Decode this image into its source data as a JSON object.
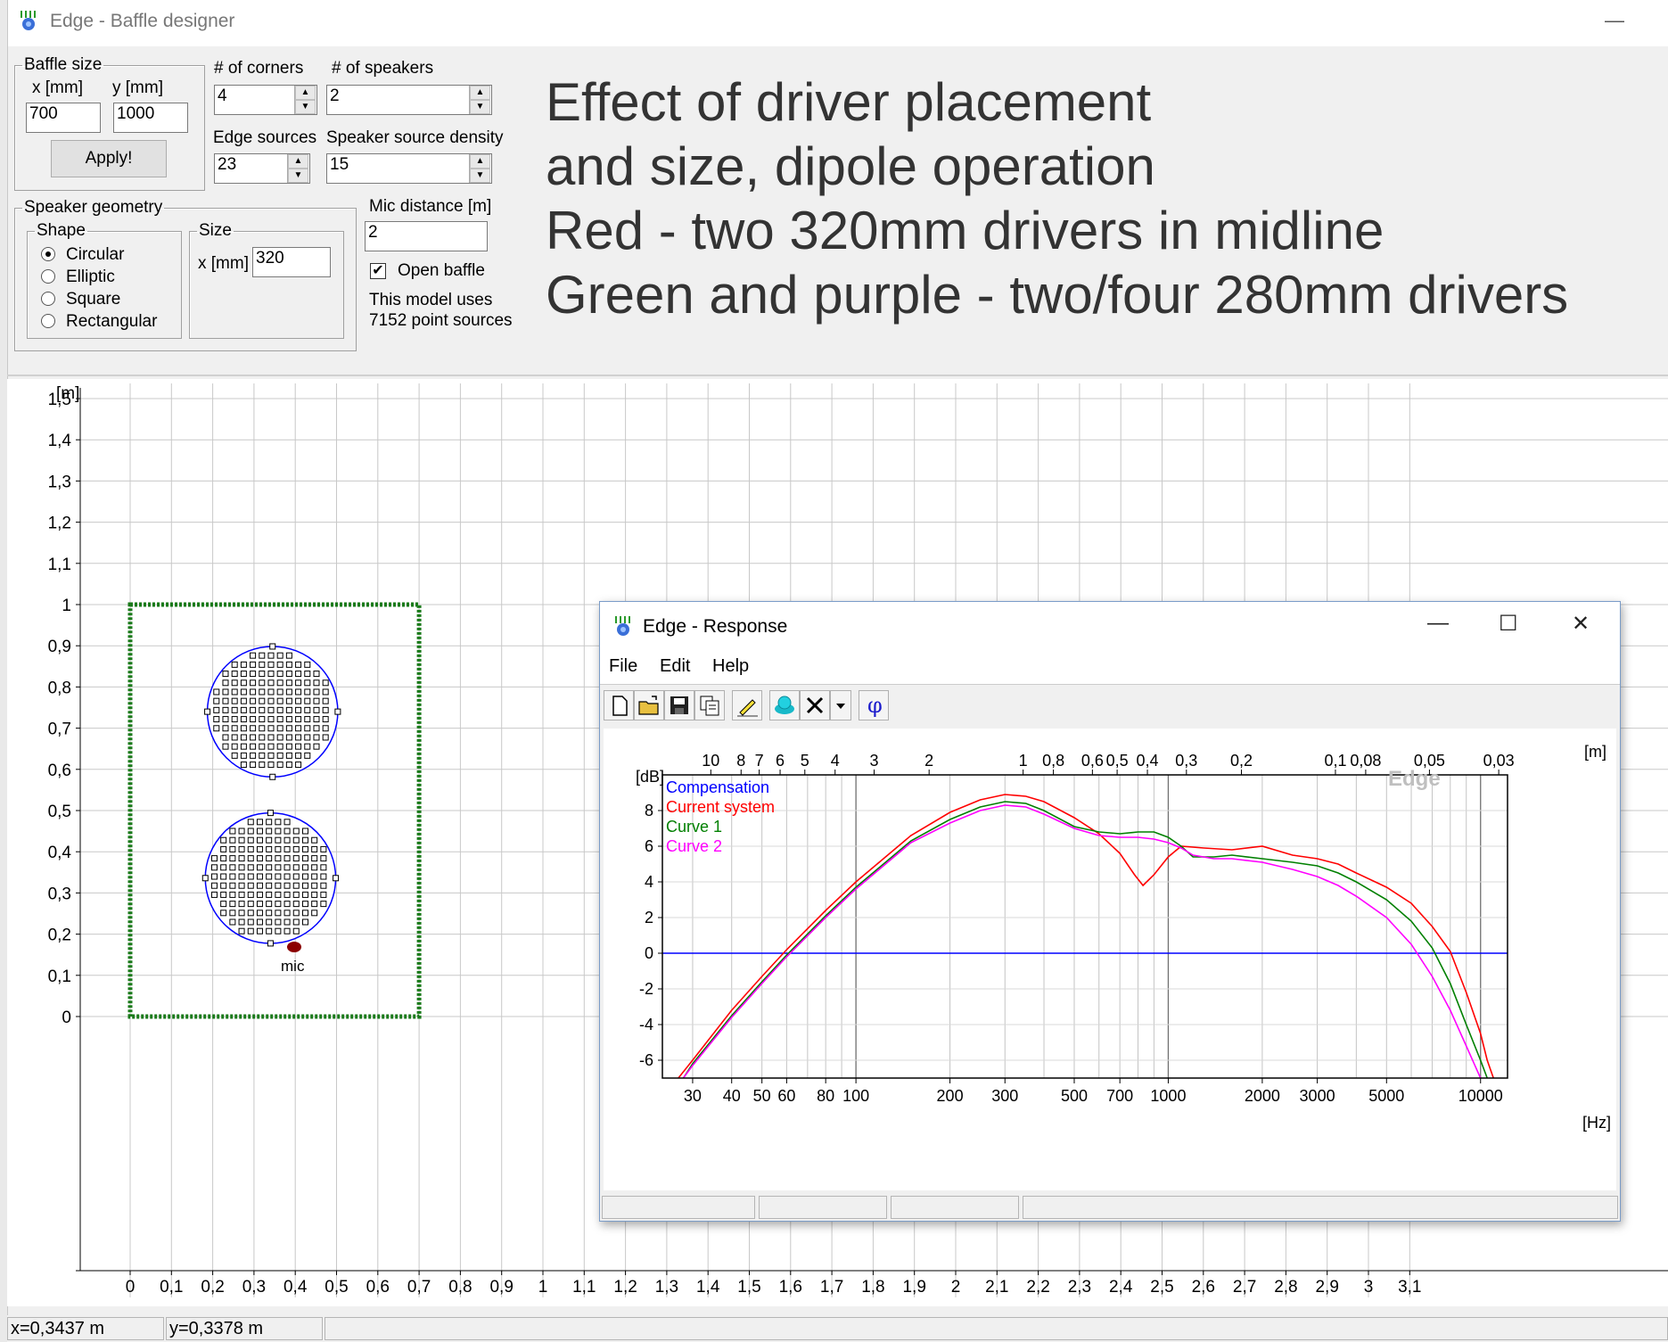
{
  "window": {
    "title": "Edge - Baffle designer",
    "minimize": "—"
  },
  "baffle_size": {
    "legend": "Baffle size",
    "x_label": "x [mm]",
    "y_label": "y [mm]",
    "x_value": "700",
    "y_value": "1000",
    "apply_label": "Apply!"
  },
  "corners": {
    "label": "# of corners",
    "value": "4"
  },
  "speakers": {
    "label": "# of speakers",
    "value": "2"
  },
  "edge_sources": {
    "label": "Edge sources",
    "value": "23"
  },
  "speaker_density": {
    "label": "Speaker source density",
    "value": "15"
  },
  "speaker_geometry": {
    "legend": "Speaker geometry",
    "shape_legend": "Shape",
    "shapes": [
      "Circular",
      "Elliptic",
      "Square",
      "Rectangular"
    ],
    "selected_shape": "Circular",
    "size_legend": "Size",
    "size_x_label": "x [mm]",
    "size_x_value": "320"
  },
  "mic": {
    "label": "Mic distance [m]",
    "value": "2",
    "open_baffle_label": "Open baffle",
    "open_baffle_checked": true,
    "model_text_1": "This model uses",
    "model_text_2": "7152 point sources"
  },
  "annotation": [
    "Effect of driver placement",
    "and size, dipole operation",
    "Red - two 320mm drivers in midline",
    "Green and purple - two/four 280mm drivers"
  ],
  "plot": {
    "y_unit": "[m]",
    "y_ticks": [
      "1,6",
      "1,5",
      "1,4",
      "1,3",
      "1,2",
      "1,1",
      "1",
      "0,9",
      "0,8",
      "0,7",
      "0,6",
      "0,5",
      "0,4",
      "0,3",
      "0,2",
      "0,1",
      "0"
    ],
    "x_ticks": [
      "0",
      "0,1",
      "0,2",
      "0,3",
      "0,4",
      "0,5",
      "0,6",
      "0,7",
      "0,8",
      "0,9",
      "1",
      "1,1",
      "1,2",
      "1,3",
      "1,4",
      "1,5",
      "1,6",
      "1,7",
      "1,8",
      "1,9",
      "2",
      "2,1",
      "2,2",
      "2,3",
      "2,4",
      "2,5",
      "2,6",
      "2,7",
      "2,8",
      "2,9",
      "3",
      "3,1"
    ],
    "mic_label": "mic",
    "baffle_color": "#1a7a1a",
    "speaker_color": "#0000ff",
    "mic_color": "#8b0000"
  },
  "status": {
    "x": "x=0,3437 m",
    "y": "y=0,3378 m"
  },
  "response": {
    "title": "Edge - Response",
    "controls": {
      "minimize": "—",
      "maximize": "☐",
      "close": "✕"
    },
    "menu": [
      "File",
      "Edit",
      "Help"
    ],
    "toolbar_icons": [
      "new-file-icon",
      "open-folder-icon",
      "save-icon",
      "copy-icon",
      "pencil-icon",
      "speaker-icon",
      "delete-icon",
      "dropdown-icon",
      "phase-icon"
    ],
    "phase_symbol": "φ",
    "chart_data": {
      "type": "line",
      "x_scale": "log",
      "xlabel": "[Hz]",
      "ylabel": "[dB]",
      "top_axis_label": "[m]",
      "watermark": "Edge",
      "xlim": [
        24,
        12200
      ],
      "ylim": [
        -7,
        10
      ],
      "x_tick_labels": [
        {
          "v": 30,
          "t": "30"
        },
        {
          "v": 40,
          "t": "40"
        },
        {
          "v": 50,
          "t": "50"
        },
        {
          "v": 60,
          "t": "60"
        },
        {
          "v": 80,
          "t": "80"
        },
        {
          "v": 100,
          "t": "100"
        },
        {
          "v": 200,
          "t": "200"
        },
        {
          "v": 300,
          "t": "300"
        },
        {
          "v": 500,
          "t": "500"
        },
        {
          "v": 700,
          "t": "700"
        },
        {
          "v": 1000,
          "t": "1000"
        },
        {
          "v": 2000,
          "t": "2000"
        },
        {
          "v": 3000,
          "t": "3000"
        },
        {
          "v": 5000,
          "t": "5000"
        },
        {
          "v": 10000,
          "t": "10000"
        }
      ],
      "top_tick_labels": [
        {
          "m": 10,
          "t": "10"
        },
        {
          "m": 8,
          "t": "8"
        },
        {
          "m": 7,
          "t": "7"
        },
        {
          "m": 6,
          "t": "6"
        },
        {
          "m": 5,
          "t": "5"
        },
        {
          "m": 4,
          "t": "4"
        },
        {
          "m": 3,
          "t": "3"
        },
        {
          "m": 2,
          "t": "2"
        },
        {
          "m": 1,
          "t": "1"
        },
        {
          "m": 0.8,
          "t": "0,8"
        },
        {
          "m": 0.6,
          "t": "0,6"
        },
        {
          "m": 0.5,
          "t": "0,5"
        },
        {
          "m": 0.4,
          "t": "0,4"
        },
        {
          "m": 0.3,
          "t": "0,3"
        },
        {
          "m": 0.2,
          "t": "0,2"
        },
        {
          "m": 0.1,
          "t": "0,1"
        },
        {
          "m": 0.08,
          "t": "0,08"
        },
        {
          "m": 0.05,
          "t": "0,05"
        },
        {
          "m": 0.03,
          "t": "0,03"
        }
      ],
      "y_ticks": [
        8,
        6,
        4,
        2,
        0,
        -2,
        -4,
        -6
      ],
      "series": [
        {
          "name": "Compensation",
          "color": "#0000ff",
          "points": [
            [
              24,
              0
            ],
            [
              12200,
              0
            ]
          ]
        },
        {
          "name": "Current system",
          "color": "#ff0000",
          "points": [
            [
              27,
              -7
            ],
            [
              30,
              -6
            ],
            [
              40,
              -3.2
            ],
            [
              50,
              -1.3
            ],
            [
              60,
              0.2
            ],
            [
              80,
              2.4
            ],
            [
              100,
              4
            ],
            [
              150,
              6.6
            ],
            [
              200,
              7.9
            ],
            [
              250,
              8.6
            ],
            [
              300,
              8.9
            ],
            [
              350,
              8.8
            ],
            [
              400,
              8.5
            ],
            [
              500,
              7.6
            ],
            [
              600,
              6.7
            ],
            [
              700,
              5.6
            ],
            [
              780,
              4.4
            ],
            [
              830,
              3.8
            ],
            [
              900,
              4.4
            ],
            [
              1000,
              5.4
            ],
            [
              1100,
              6.0
            ],
            [
              1300,
              5.9
            ],
            [
              1600,
              5.8
            ],
            [
              2000,
              6.0
            ],
            [
              2500,
              5.5
            ],
            [
              3000,
              5.3
            ],
            [
              3500,
              5.0
            ],
            [
              4000,
              4.5
            ],
            [
              5000,
              3.7
            ],
            [
              6000,
              2.8
            ],
            [
              7000,
              1.5
            ],
            [
              8000,
              0.1
            ],
            [
              9000,
              -2.2
            ],
            [
              10000,
              -4.5
            ],
            [
              10500,
              -6
            ],
            [
              11000,
              -7
            ]
          ]
        },
        {
          "name": "Curve 1",
          "color": "#008000",
          "points": [
            [
              28,
              -7
            ],
            [
              30,
              -6.2
            ],
            [
              40,
              -3.5
            ],
            [
              50,
              -1.6
            ],
            [
              60,
              -0.1
            ],
            [
              80,
              2.1
            ],
            [
              100,
              3.7
            ],
            [
              150,
              6.3
            ],
            [
              200,
              7.5
            ],
            [
              250,
              8.2
            ],
            [
              300,
              8.5
            ],
            [
              350,
              8.4
            ],
            [
              400,
              8.0
            ],
            [
              500,
              7.1
            ],
            [
              600,
              6.8
            ],
            [
              700,
              6.7
            ],
            [
              800,
              6.8
            ],
            [
              900,
              6.8
            ],
            [
              1000,
              6.5
            ],
            [
              1100,
              6.0
            ],
            [
              1200,
              5.4
            ],
            [
              1400,
              5.4
            ],
            [
              1600,
              5.5
            ],
            [
              2000,
              5.3
            ],
            [
              2500,
              5.1
            ],
            [
              3000,
              4.9
            ],
            [
              3500,
              4.5
            ],
            [
              4000,
              4.0
            ],
            [
              5000,
              3.0
            ],
            [
              6000,
              1.8
            ],
            [
              7000,
              0.3
            ],
            [
              8000,
              -1.7
            ],
            [
              9000,
              -4.0
            ],
            [
              10000,
              -6.0
            ],
            [
              10500,
              -7
            ]
          ]
        },
        {
          "name": "Curve 2",
          "color": "#ff00ff",
          "points": [
            [
              28,
              -7
            ],
            [
              30,
              -6.3
            ],
            [
              40,
              -3.6
            ],
            [
              50,
              -1.7
            ],
            [
              60,
              -0.2
            ],
            [
              80,
              2.0
            ],
            [
              100,
              3.6
            ],
            [
              150,
              6.2
            ],
            [
              200,
              7.3
            ],
            [
              250,
              8.0
            ],
            [
              300,
              8.3
            ],
            [
              350,
              8.2
            ],
            [
              400,
              7.8
            ],
            [
              500,
              7.0
            ],
            [
              600,
              6.6
            ],
            [
              700,
              6.5
            ],
            [
              800,
              6.5
            ],
            [
              900,
              6.4
            ],
            [
              1000,
              6.2
            ],
            [
              1100,
              5.9
            ],
            [
              1200,
              5.5
            ],
            [
              1400,
              5.3
            ],
            [
              1600,
              5.3
            ],
            [
              2000,
              5.1
            ],
            [
              2500,
              4.7
            ],
            [
              3000,
              4.3
            ],
            [
              3500,
              3.8
            ],
            [
              4000,
              3.2
            ],
            [
              5000,
              2.0
            ],
            [
              6000,
              0.5
            ],
            [
              7000,
              -1.3
            ],
            [
              8000,
              -3.2
            ],
            [
              9000,
              -5.2
            ],
            [
              10000,
              -7
            ]
          ]
        }
      ]
    }
  }
}
